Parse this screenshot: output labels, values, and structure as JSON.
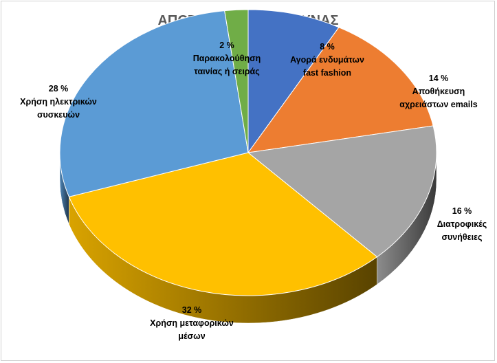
{
  "chart_data": {
    "type": "pie",
    "title": "ΑΠΟΤΕΛΕΣΜΑΤΑ ΕΡΕΥΝΑΣ",
    "unit": "%",
    "slices": [
      {
        "label_lines": [
          "Αγορά ενδυμάτων",
          "fast fashion"
        ],
        "value": 8,
        "value_label": "8 %",
        "color": "#4472C4"
      },
      {
        "label_lines": [
          "Αποθήκευση",
          "αχρειάστων emails"
        ],
        "value": 14,
        "value_label": "14 %",
        "color": "#ED7D31"
      },
      {
        "label_lines": [
          "Διατροφικές",
          "συνήθειες"
        ],
        "value": 16,
        "value_label": "16 %",
        "color": "#A5A5A5"
      },
      {
        "label_lines": [
          "Χρήση μεταφορικών",
          "μέσων"
        ],
        "value": 32,
        "value_label": "32 %",
        "color": "#FFC000"
      },
      {
        "label_lines": [
          "Χρήση ηλεκτρικών",
          "συσκευών"
        ],
        "value": 28,
        "value_label": "28 %",
        "color": "#5B9BD5"
      },
      {
        "label_lines": [
          "Παρακολούθηση",
          "ταινίας ή σειράς"
        ],
        "value": 2,
        "value_label": "2 %",
        "color": "#70AD47"
      }
    ],
    "style": "3d"
  }
}
